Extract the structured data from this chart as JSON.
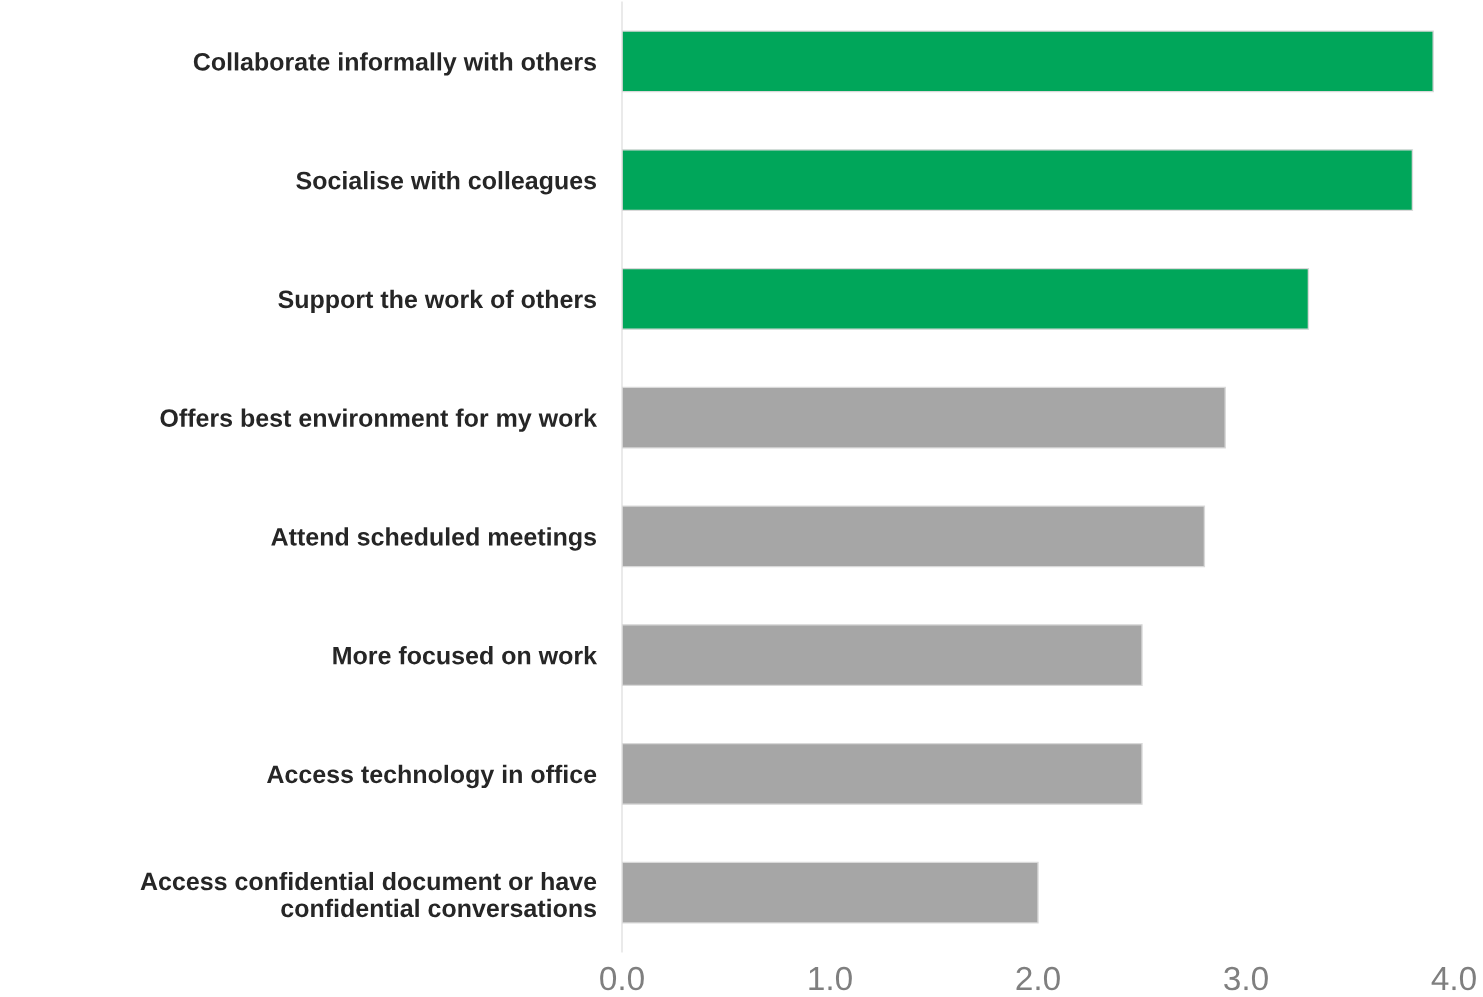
{
  "chart_data": {
    "type": "bar",
    "orientation": "horizontal",
    "categories": [
      "Collaborate informally with others",
      "Socialise with colleagues",
      "Support the work of others",
      "Offers best environment for my work",
      "Attend scheduled meetings",
      "More focused on work",
      "Access technology in office",
      "Access confidential document or have\nconfidential conversations"
    ],
    "values": [
      3.9,
      3.8,
      3.3,
      2.9,
      2.8,
      2.5,
      2.5,
      2.0
    ],
    "colors": [
      "#00a65a",
      "#00a65a",
      "#00a65a",
      "#a6a6a6",
      "#a6a6a6",
      "#a6a6a6",
      "#a6a6a6",
      "#a6a6a6"
    ],
    "xlim": [
      0,
      4.0
    ],
    "xticks": [
      {
        "value": 0,
        "label": "0.0"
      },
      {
        "value": 1,
        "label": "1.0"
      },
      {
        "value": 2,
        "label": "2.0"
      },
      {
        "value": 3,
        "label": "3.0"
      },
      {
        "value": 4,
        "label": "4.0"
      }
    ],
    "grid": false,
    "legend": false
  }
}
